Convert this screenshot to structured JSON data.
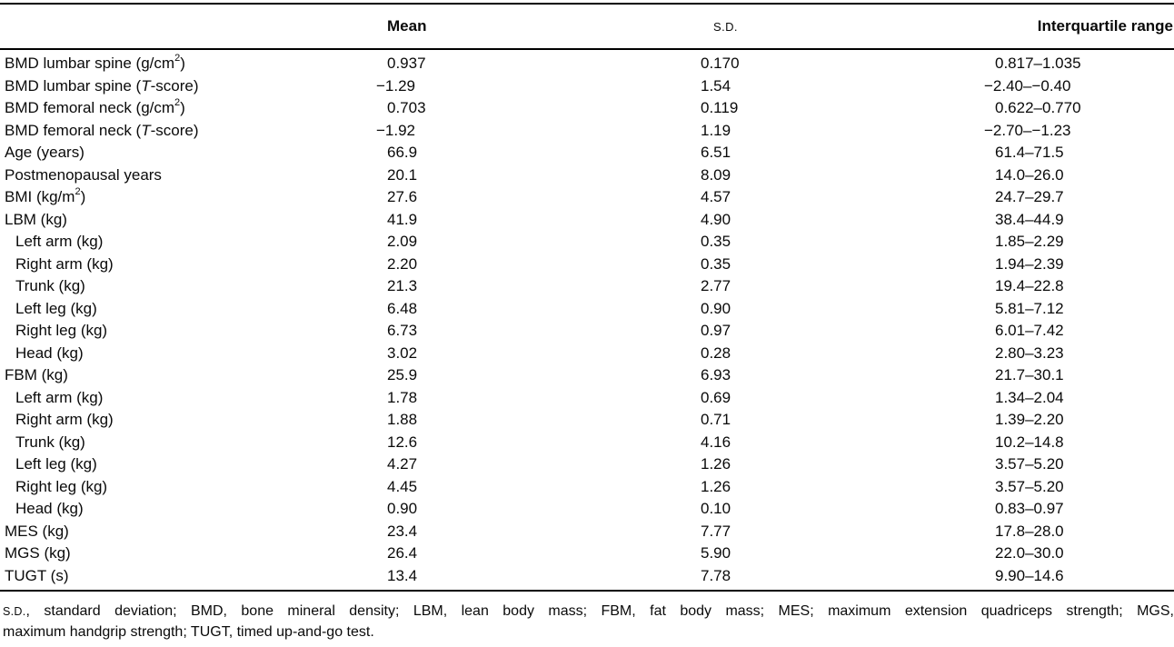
{
  "colors": {
    "background": "#ffffff",
    "text": "#0a0a0a",
    "rule": "#000000"
  },
  "table": {
    "columns": {
      "mean": "Mean",
      "sd": "S.D.",
      "iqr": "Interquartile range"
    },
    "rows": [
      {
        "pre": "BMD lumbar spine (g/cm",
        "sup": "2",
        "post": ")",
        "mean": "0.937",
        "sd": "0.170",
        "iqr": "0.817–1.035"
      },
      {
        "pre": "BMD lumbar spine (",
        "it": "T",
        "post": "-score)",
        "mean": "−1.29",
        "sd": "1.54",
        "iqr": "−2.40–−0.40"
      },
      {
        "pre": "BMD femoral neck (g/cm",
        "sup": "2",
        "post": ")",
        "mean": "0.703",
        "sd": "0.119",
        "iqr": "0.622–0.770"
      },
      {
        "pre": "BMD femoral neck (",
        "it": "T",
        "post": "-score)",
        "mean": "−1.92",
        "sd": "1.19",
        "iqr": "−2.70–−1.23"
      },
      {
        "pre": "Age (years)",
        "mean": "66.9",
        "sd": "6.51",
        "iqr": "61.4–71.5"
      },
      {
        "pre": "Postmenopausal years",
        "mean": "20.1",
        "sd": "8.09",
        "iqr": "14.0–26.0"
      },
      {
        "pre": "BMI (kg/m",
        "sup": "2",
        "post": ")",
        "mean": "27.6",
        "sd": "4.57",
        "iqr": "24.7–29.7"
      },
      {
        "pre": "LBM (kg)",
        "mean": "41.9",
        "sd": "4.90",
        "iqr": "38.4–44.9"
      },
      {
        "pre": "Left arm (kg)",
        "mean": "2.09",
        "sd": "0.35",
        "iqr": "1.85–2.29"
      },
      {
        "pre": "Right arm (kg)",
        "mean": "2.20",
        "sd": "0.35",
        "iqr": "1.94–2.39"
      },
      {
        "pre": "Trunk (kg)",
        "mean": "21.3",
        "sd": "2.77",
        "iqr": "19.4–22.8"
      },
      {
        "pre": "Left leg (kg)",
        "mean": "6.48",
        "sd": "0.90",
        "iqr": "5.81–7.12"
      },
      {
        "pre": "Right leg (kg)",
        "mean": "6.73",
        "sd": "0.97",
        "iqr": "6.01–7.42"
      },
      {
        "pre": "Head (kg)",
        "mean": "3.02",
        "sd": "0.28",
        "iqr": "2.80–3.23"
      },
      {
        "pre": "FBM (kg)",
        "mean": "25.9",
        "sd": "6.93",
        "iqr": "21.7–30.1"
      },
      {
        "pre": "Left arm (kg)",
        "mean": "1.78",
        "sd": "0.69",
        "iqr": "1.34–2.04"
      },
      {
        "pre": "Right arm (kg)",
        "mean": "1.88",
        "sd": "0.71",
        "iqr": "1.39–2.20"
      },
      {
        "pre": "Trunk (kg)",
        "mean": "12.6",
        "sd": "4.16",
        "iqr": "10.2–14.8"
      },
      {
        "pre": "Left leg (kg)",
        "mean": "4.27",
        "sd": "1.26",
        "iqr": "3.57–5.20"
      },
      {
        "pre": "Right leg (kg)",
        "mean": "4.45",
        "sd": "1.26",
        "iqr": "3.57–5.20"
      },
      {
        "pre": "Head (kg)",
        "mean": "0.90",
        "sd": "0.10",
        "iqr": "0.83–0.97"
      },
      {
        "pre": "MES (kg)",
        "mean": "23.4",
        "sd": "7.77",
        "iqr": "17.8–28.0"
      },
      {
        "pre": "MGS (kg)",
        "mean": "26.4",
        "sd": "5.90",
        "iqr": "22.0–30.0"
      },
      {
        "pre": "TUGT (s)",
        "mean": "13.4",
        "sd": "7.78",
        "iqr": "9.90–14.6"
      }
    ]
  },
  "footnote": {
    "sd": "S.D.",
    "line1": ", standard deviation; BMD, bone mineral density; LBM, lean body mass; FBM, fat body mass; MES; maximum extension quadriceps strength; MGS,",
    "line2": "maximum handgrip strength; TUGT, timed up-and-go test."
  }
}
